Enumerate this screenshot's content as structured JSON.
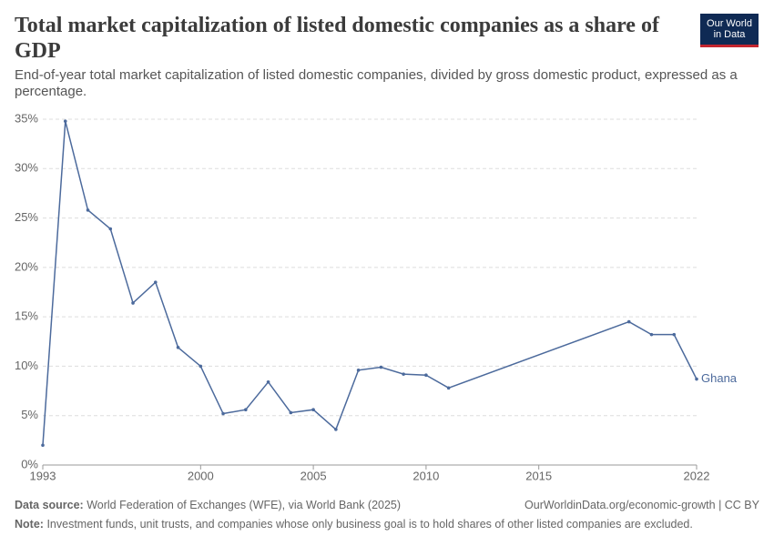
{
  "logo": "Our World in Data",
  "chart_data": {
    "type": "line",
    "title": "Total market capitalization of listed domestic companies as a share of GDP",
    "subtitle": "End-of-year total market capitalization of listed domestic companies, divided by gross domestic product, expressed as a percentage.",
    "x": [
      1993,
      1994,
      1995,
      1996,
      1997,
      1998,
      1999,
      2000,
      2001,
      2002,
      2003,
      2004,
      2005,
      2006,
      2007,
      2008,
      2009,
      2010,
      2011,
      2019,
      2020,
      2021,
      2022
    ],
    "series": [
      {
        "name": "Ghana",
        "color": "#4c6a9c",
        "values": [
          2.0,
          34.8,
          25.8,
          23.9,
          16.4,
          18.5,
          11.9,
          10.0,
          5.2,
          5.6,
          8.4,
          5.3,
          5.6,
          3.6,
          9.6,
          9.9,
          9.2,
          9.1,
          7.8,
          14.5,
          13.2,
          13.2,
          8.7
        ]
      }
    ],
    "xlim": [
      1993,
      2022
    ],
    "xticks": [
      1993,
      2000,
      2005,
      2010,
      2015,
      2022
    ],
    "ylim": [
      0,
      35
    ],
    "yticks": [
      {
        "value": 0,
        "label": "0%"
      },
      {
        "value": 5,
        "label": "5%"
      },
      {
        "value": 10,
        "label": "10%"
      },
      {
        "value": 15,
        "label": "15%"
      },
      {
        "value": 20,
        "label": "20%"
      },
      {
        "value": 25,
        "label": "25%"
      },
      {
        "value": 30,
        "label": "30%"
      },
      {
        "value": 35,
        "label": "35%"
      }
    ],
    "grid": true
  },
  "footer": {
    "source_label": "Data source:",
    "source": "World Federation of Exchanges (WFE), via World Bank (2025)",
    "url": "OurWorldinData.org/economic-growth | CC BY",
    "note_label": "Note:",
    "note": "Investment funds, unit trusts, and companies whose only business goal is to hold shares of other listed companies are excluded."
  }
}
